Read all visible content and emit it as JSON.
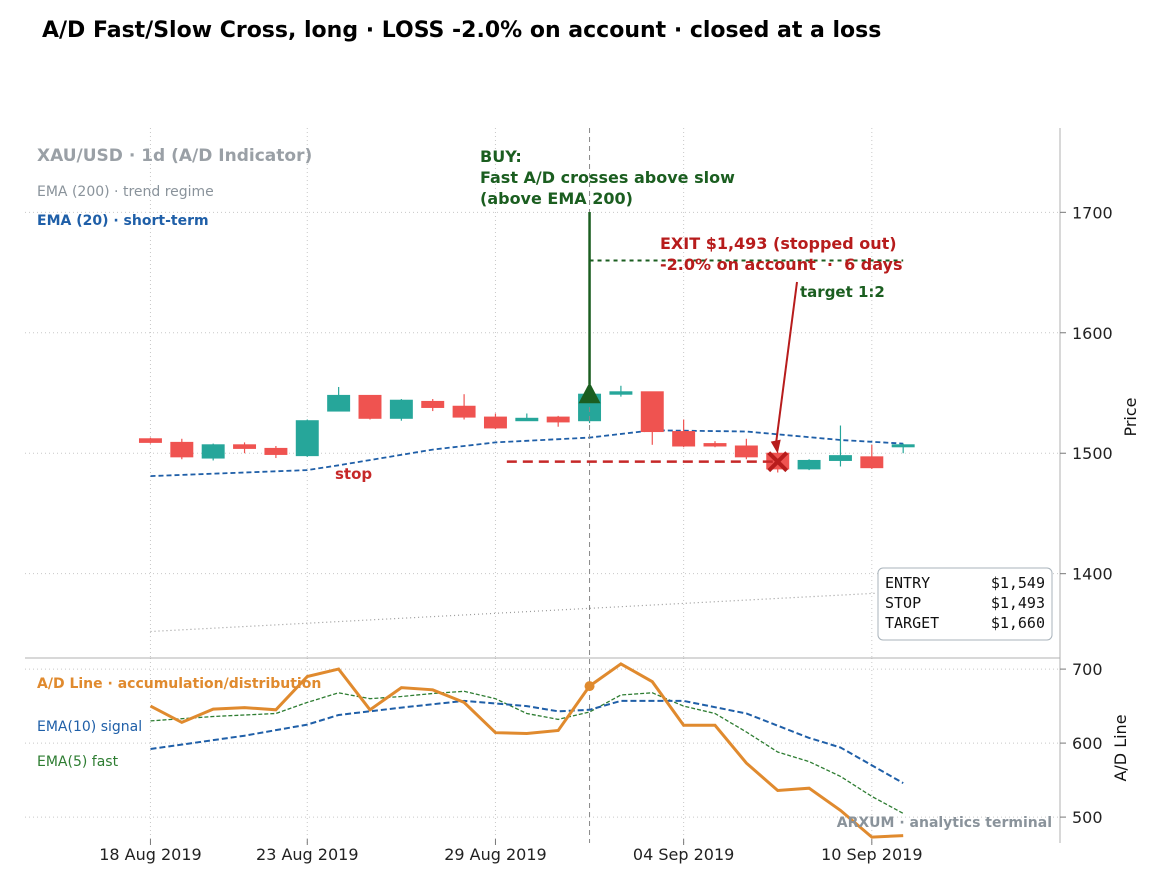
{
  "title": "A/D Fast/Slow Cross, long · LOSS -2.0% on account · closed at a loss",
  "colors": {
    "up": "#26a69a",
    "down": "#ef5350",
    "ema20": "#1f5fa8",
    "ema200": "#999999",
    "ad_line": "#e08a2e",
    "ema10": "#1f5fa8",
    "ema5": "#2e7d32",
    "buy": "#1b5e20",
    "exit": "#b71c1c",
    "stop": "#c62828",
    "target": "#1b5e20"
  },
  "chart_data": [
    {
      "type": "candlestick",
      "title": "XAU/USD · 1d (A/D Indicator)",
      "ylabel": "Price",
      "ylim": [
        1330,
        1770
      ],
      "yticks": [
        1400,
        1500,
        1600,
        1700
      ],
      "xlim": [
        "2019-08-14",
        "2019-09-16"
      ],
      "xticks": [
        "2019-08-18",
        "2019-08-23",
        "2019-08-29",
        "2019-09-04",
        "2019-09-10"
      ],
      "xtick_labels": [
        "18 Aug 2019",
        "23 Aug 2019",
        "29 Aug 2019",
        "04 Sep 2019",
        "10 Sep 2019"
      ],
      "grid": true,
      "legend": [
        {
          "label": "EMA (200) · trend regime",
          "color": "#8a939b"
        },
        {
          "label": "EMA (20) · short-term",
          "color": "#1f5fa8"
        }
      ],
      "candles": [
        {
          "date": "2019-08-18",
          "open": 1512,
          "high": 1513,
          "low": 1508,
          "close": 1509
        },
        {
          "date": "2019-08-19",
          "open": 1509,
          "high": 1512,
          "low": 1495,
          "close": 1497
        },
        {
          "date": "2019-08-20",
          "open": 1496,
          "high": 1508,
          "low": 1494,
          "close": 1507
        },
        {
          "date": "2019-08-21",
          "open": 1507,
          "high": 1509,
          "low": 1500,
          "close": 1504
        },
        {
          "date": "2019-08-22",
          "open": 1504,
          "high": 1506,
          "low": 1496,
          "close": 1499
        },
        {
          "date": "2019-08-23",
          "open": 1498,
          "high": 1528,
          "low": 1497,
          "close": 1527
        },
        {
          "date": "2019-08-24",
          "open": 1535,
          "high": 1555,
          "low": 1535,
          "close": 1548
        },
        {
          "date": "2019-08-25",
          "open": 1548,
          "high": 1548,
          "low": 1528,
          "close": 1529
        },
        {
          "date": "2019-08-26",
          "open": 1529,
          "high": 1545,
          "low": 1527,
          "close": 1544
        },
        {
          "date": "2019-08-27",
          "open": 1543,
          "high": 1545,
          "low": 1535,
          "close": 1538
        },
        {
          "date": "2019-08-28",
          "open": 1539,
          "high": 1549,
          "low": 1528,
          "close": 1530
        },
        {
          "date": "2019-08-29",
          "open": 1530,
          "high": 1533,
          "low": 1520,
          "close": 1521
        },
        {
          "date": "2019-08-30",
          "open": 1527,
          "high": 1533,
          "low": 1527,
          "close": 1529
        },
        {
          "date": "2019-08-31",
          "open": 1530,
          "high": 1531,
          "low": 1522,
          "close": 1526
        },
        {
          "date": "2019-09-01",
          "open": 1527,
          "high": 1551,
          "low": 1525,
          "close": 1549
        },
        {
          "date": "2019-09-02",
          "open": 1549,
          "high": 1556,
          "low": 1547,
          "close": 1551
        },
        {
          "date": "2019-09-03",
          "open": 1551,
          "high": 1551,
          "low": 1507,
          "close": 1518
        },
        {
          "date": "2019-09-04",
          "open": 1518,
          "high": 1528,
          "low": 1505,
          "close": 1506
        },
        {
          "date": "2019-09-05",
          "open": 1508,
          "high": 1510,
          "low": 1505,
          "close": 1506
        },
        {
          "date": "2019-09-06",
          "open": 1506,
          "high": 1512,
          "low": 1495,
          "close": 1497
        },
        {
          "date": "2019-09-07",
          "open": 1500,
          "high": 1501,
          "low": 1484,
          "close": 1487
        },
        {
          "date": "2019-09-08",
          "open": 1487,
          "high": 1495,
          "low": 1486,
          "close": 1494
        },
        {
          "date": "2019-09-09",
          "open": 1494,
          "high": 1523,
          "low": 1489,
          "close": 1498
        },
        {
          "date": "2019-09-10",
          "open": 1497,
          "high": 1507,
          "low": 1487,
          "close": 1488
        },
        {
          "date": "2019-09-11",
          "open": 1507,
          "high": 1508,
          "low": 1500,
          "close": 1507
        }
      ],
      "series": [
        {
          "name": "EMA (20) · short-term",
          "x": [
            "2019-08-18",
            "2019-08-23",
            "2019-08-24",
            "2019-08-27",
            "2019-08-29",
            "2019-09-01",
            "2019-09-03",
            "2019-09-06",
            "2019-09-09",
            "2019-09-11"
          ],
          "values": [
            1481,
            1486,
            1490,
            1503,
            1509,
            1513,
            1519,
            1518,
            1511,
            1508
          ]
        },
        {
          "name": "EMA (200) · trend regime",
          "x": [
            "2019-08-18",
            "2019-09-11"
          ],
          "values": [
            1352,
            1385
          ]
        }
      ],
      "trade": {
        "entry": 1549,
        "stop": 1493,
        "target": 1660,
        "exit": 1493,
        "entry_date": "2019-09-01",
        "exit_date": "2019-09-07"
      },
      "annotations": {
        "buy": [
          "BUY:",
          "Fast A/D crosses above slow",
          "(above EMA 200)"
        ],
        "exit": [
          "EXIT $1,493 (stopped out)",
          "-2.0% on account  ·  6 days"
        ],
        "target": "target 1:2",
        "stop": "stop"
      },
      "info_box": [
        {
          "label": "ENTRY",
          "value": "$1,549"
        },
        {
          "label": "STOP",
          "value": "$1,493"
        },
        {
          "label": "TARGET",
          "value": "$1,660"
        }
      ]
    },
    {
      "type": "line",
      "ylabel": "A/D Line",
      "ylim": [
        465,
        715
      ],
      "yticks": [
        500,
        600,
        700
      ],
      "legend": [
        {
          "label": "A/D Line · accumulation/distribution",
          "color": "#e08a2e"
        },
        {
          "label": "EMA(10) signal",
          "color": "#1f5fa8"
        },
        {
          "label": "EMA(5) fast",
          "color": "#2e7d32"
        }
      ],
      "series": [
        {
          "name": "A/D Line · accumulation/distribution",
          "x": [
            "2019-08-18",
            "2019-08-19",
            "2019-08-20",
            "2019-08-21",
            "2019-08-22",
            "2019-08-23",
            "2019-08-24",
            "2019-08-25",
            "2019-08-26",
            "2019-08-27",
            "2019-08-28",
            "2019-08-29",
            "2019-08-30",
            "2019-08-31",
            "2019-09-01",
            "2019-09-02",
            "2019-09-03",
            "2019-09-04",
            "2019-09-05",
            "2019-09-06",
            "2019-09-07",
            "2019-09-08",
            "2019-09-09",
            "2019-09-10",
            "2019-09-11"
          ],
          "values": [
            650,
            628,
            646,
            648,
            645,
            690,
            700,
            645,
            675,
            672,
            655,
            614,
            613,
            617,
            677,
            707,
            683,
            624,
            624,
            573,
            536,
            539,
            509,
            473,
            475
          ]
        },
        {
          "name": "EMA(10) signal",
          "x": [
            "2019-08-18",
            "2019-08-21",
            "2019-08-23",
            "2019-08-24",
            "2019-08-26",
            "2019-08-28",
            "2019-08-30",
            "2019-08-31",
            "2019-09-01",
            "2019-09-02",
            "2019-09-04",
            "2019-09-06",
            "2019-09-08",
            "2019-09-09",
            "2019-09-11"
          ],
          "values": [
            592,
            610,
            625,
            638,
            648,
            657,
            650,
            643,
            645,
            657,
            657,
            640,
            607,
            594,
            546
          ]
        },
        {
          "name": "EMA(5) fast",
          "x": [
            "2019-08-18",
            "2019-08-20",
            "2019-08-21",
            "2019-08-22",
            "2019-08-23",
            "2019-08-24",
            "2019-08-25",
            "2019-08-26",
            "2019-08-27",
            "2019-08-28",
            "2019-08-29",
            "2019-08-30",
            "2019-08-31",
            "2019-09-01",
            "2019-09-02",
            "2019-09-03",
            "2019-09-04",
            "2019-09-05",
            "2019-09-06",
            "2019-09-07",
            "2019-09-08",
            "2019-09-09",
            "2019-09-10",
            "2019-09-11"
          ],
          "values": [
            630,
            636,
            638,
            640,
            655,
            668,
            660,
            663,
            667,
            670,
            660,
            640,
            632,
            642,
            665,
            668,
            650,
            640,
            615,
            588,
            575,
            555,
            528,
            505
          ]
        }
      ],
      "cross_marker": {
        "date": "2019-09-01",
        "value": 677
      },
      "watermark": "ARXUM · analytics terminal"
    }
  ]
}
